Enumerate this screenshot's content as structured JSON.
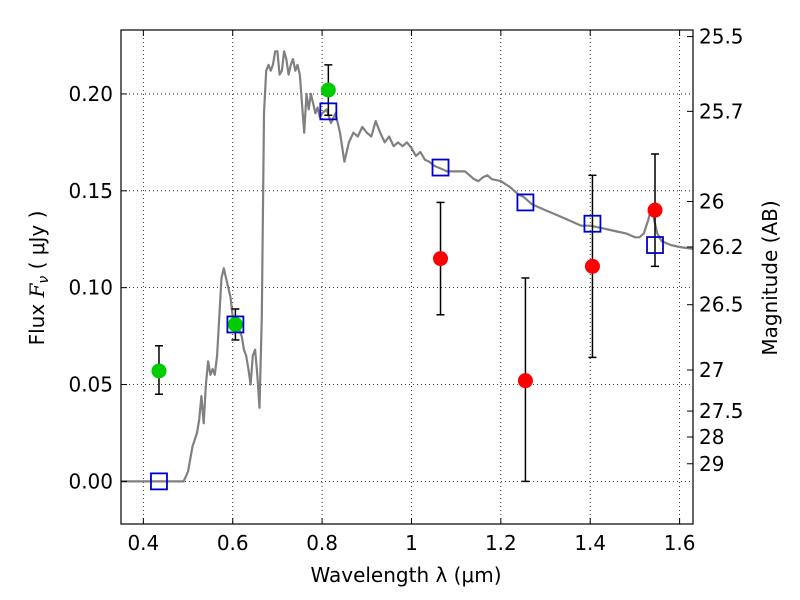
{
  "chart_data": {
    "type": "scatter",
    "xlabel": "Wavelength  λ (μm)",
    "ylabel": "Flux  F_ν  ( μJy )",
    "ylabel_parts": {
      "prefix": "Flux  ",
      "symbol": "F",
      "subscript": "ν",
      "suffix": "  ( μJy )"
    },
    "y2label": "Magnitude (AB)",
    "xlim": [
      0.35,
      1.63
    ],
    "ylim": [
      -0.022,
      0.233
    ],
    "grid": true,
    "x_ticks": [
      0.4,
      0.6,
      0.8,
      1.0,
      1.2,
      1.4,
      1.6
    ],
    "x_tick_labels": [
      "0.4",
      "0.6",
      "0.8",
      "1",
      "1.2",
      "1.4",
      "1.6"
    ],
    "y_ticks": [
      0.0,
      0.05,
      0.1,
      0.15,
      0.2
    ],
    "y_tick_labels": [
      "0.00",
      "0.05",
      "0.10",
      "0.15",
      "0.20"
    ],
    "y2_ticks": [
      {
        "label": "25.5",
        "flux": 0.2296
      },
      {
        "label": "25.7",
        "flux": 0.191
      },
      {
        "label": "26",
        "flux": 0.1445
      },
      {
        "label": "26.2",
        "flux": 0.121
      },
      {
        "label": "26.5",
        "flux": 0.0912
      },
      {
        "label": "27",
        "flux": 0.0575
      },
      {
        "label": "27.5",
        "flux": 0.0363
      },
      {
        "label": "28",
        "flux": 0.0229
      },
      {
        "label": "29",
        "flux": 0.0091
      }
    ],
    "model_spectrum": {
      "color": "#808080",
      "points": [
        [
          0.35,
          0.0
        ],
        [
          0.49,
          0.0
        ],
        [
          0.5,
          0.005
        ],
        [
          0.51,
          0.018
        ],
        [
          0.52,
          0.025
        ],
        [
          0.525,
          0.032
        ],
        [
          0.53,
          0.044
        ],
        [
          0.535,
          0.03
        ],
        [
          0.54,
          0.05
        ],
        [
          0.545,
          0.062
        ],
        [
          0.55,
          0.055
        ],
        [
          0.555,
          0.058
        ],
        [
          0.56,
          0.055
        ],
        [
          0.565,
          0.065
        ],
        [
          0.57,
          0.085
        ],
        [
          0.575,
          0.105
        ],
        [
          0.58,
          0.11
        ],
        [
          0.585,
          0.105
        ],
        [
          0.59,
          0.1
        ],
        [
          0.595,
          0.095
        ],
        [
          0.6,
          0.085
        ],
        [
          0.605,
          0.08
        ],
        [
          0.61,
          0.085
        ],
        [
          0.615,
          0.078
        ],
        [
          0.62,
          0.075
        ],
        [
          0.625,
          0.068
        ],
        [
          0.63,
          0.065
        ],
        [
          0.635,
          0.058
        ],
        [
          0.64,
          0.05
        ],
        [
          0.645,
          0.065
        ],
        [
          0.65,
          0.068
        ],
        [
          0.655,
          0.055
        ],
        [
          0.66,
          0.038
        ],
        [
          0.665,
          0.085
        ],
        [
          0.67,
          0.19
        ],
        [
          0.675,
          0.212
        ],
        [
          0.68,
          0.215
        ],
        [
          0.685,
          0.212
        ],
        [
          0.69,
          0.215
        ],
        [
          0.695,
          0.222
        ],
        [
          0.7,
          0.222
        ],
        [
          0.705,
          0.21
        ],
        [
          0.71,
          0.212
        ],
        [
          0.715,
          0.222
        ],
        [
          0.72,
          0.218
        ],
        [
          0.725,
          0.21
        ],
        [
          0.73,
          0.215
        ],
        [
          0.735,
          0.218
        ],
        [
          0.74,
          0.212
        ],
        [
          0.745,
          0.215
        ],
        [
          0.75,
          0.21
        ],
        [
          0.755,
          0.195
        ],
        [
          0.76,
          0.18
        ],
        [
          0.765,
          0.2
        ],
        [
          0.77,
          0.192
        ],
        [
          0.775,
          0.2
        ],
        [
          0.78,
          0.195
        ],
        [
          0.785,
          0.19
        ],
        [
          0.79,
          0.193
        ],
        [
          0.795,
          0.188
        ],
        [
          0.8,
          0.19
        ],
        [
          0.81,
          0.192
        ],
        [
          0.82,
          0.185
        ],
        [
          0.83,
          0.19
        ],
        [
          0.84,
          0.18
        ],
        [
          0.85,
          0.165
        ],
        [
          0.86,
          0.175
        ],
        [
          0.87,
          0.18
        ],
        [
          0.88,
          0.178
        ],
        [
          0.89,
          0.183
        ],
        [
          0.9,
          0.18
        ],
        [
          0.91,
          0.178
        ],
        [
          0.92,
          0.186
        ],
        [
          0.93,
          0.18
        ],
        [
          0.94,
          0.175
        ],
        [
          0.95,
          0.178
        ],
        [
          0.96,
          0.173
        ],
        [
          0.97,
          0.175
        ],
        [
          0.98,
          0.173
        ],
        [
          0.99,
          0.175
        ],
        [
          1.0,
          0.172
        ],
        [
          1.01,
          0.168
        ],
        [
          1.02,
          0.17
        ],
        [
          1.03,
          0.166
        ],
        [
          1.04,
          0.165
        ],
        [
          1.05,
          0.163
        ],
        [
          1.06,
          0.162
        ],
        [
          1.08,
          0.16
        ],
        [
          1.1,
          0.16
        ],
        [
          1.12,
          0.16
        ],
        [
          1.13,
          0.158
        ],
        [
          1.14,
          0.156
        ],
        [
          1.15,
          0.155
        ],
        [
          1.16,
          0.157
        ],
        [
          1.17,
          0.158
        ],
        [
          1.18,
          0.156
        ],
        [
          1.2,
          0.155
        ],
        [
          1.22,
          0.152
        ],
        [
          1.24,
          0.148
        ],
        [
          1.25,
          0.147
        ],
        [
          1.27,
          0.143
        ],
        [
          1.3,
          0.14
        ],
        [
          1.32,
          0.138
        ],
        [
          1.34,
          0.136
        ],
        [
          1.36,
          0.134
        ],
        [
          1.38,
          0.132
        ],
        [
          1.4,
          0.132
        ],
        [
          1.42,
          0.131
        ],
        [
          1.44,
          0.13
        ],
        [
          1.46,
          0.129
        ],
        [
          1.48,
          0.128
        ],
        [
          1.5,
          0.126
        ],
        [
          1.51,
          0.126
        ],
        [
          1.52,
          0.128
        ],
        [
          1.53,
          0.135
        ],
        [
          1.535,
          0.14
        ],
        [
          1.54,
          0.138
        ],
        [
          1.55,
          0.128
        ],
        [
          1.56,
          0.124
        ],
        [
          1.58,
          0.122
        ],
        [
          1.6,
          0.121
        ],
        [
          1.63,
          0.12
        ]
      ]
    },
    "green_points": {
      "color": "#00cc00",
      "points": [
        {
          "x": 0.435,
          "y": 0.057,
          "err_low": 0.045,
          "err_high": 0.07
        },
        {
          "x": 0.606,
          "y": 0.081,
          "err_low": 0.073,
          "err_high": 0.089
        },
        {
          "x": 0.814,
          "y": 0.202,
          "err_low": 0.189,
          "err_high": 0.215
        }
      ]
    },
    "red_points": {
      "color": "#ff0000",
      "points": [
        {
          "x": 1.065,
          "y": 0.115,
          "err_low": 0.086,
          "err_high": 0.144
        },
        {
          "x": 1.255,
          "y": 0.052,
          "err_low": 0.0,
          "err_high": 0.105
        },
        {
          "x": 1.405,
          "y": 0.111,
          "err_low": 0.064,
          "err_high": 0.158
        },
        {
          "x": 1.545,
          "y": 0.14,
          "err_low": 0.111,
          "err_high": 0.169
        }
      ]
    },
    "blue_squares": {
      "color": "#0000cc",
      "points": [
        {
          "x": 0.435,
          "y": 0.0
        },
        {
          "x": 0.606,
          "y": 0.081
        },
        {
          "x": 0.814,
          "y": 0.191
        },
        {
          "x": 1.065,
          "y": 0.162
        },
        {
          "x": 1.255,
          "y": 0.144
        },
        {
          "x": 1.405,
          "y": 0.133
        },
        {
          "x": 1.545,
          "y": 0.122
        }
      ]
    }
  }
}
